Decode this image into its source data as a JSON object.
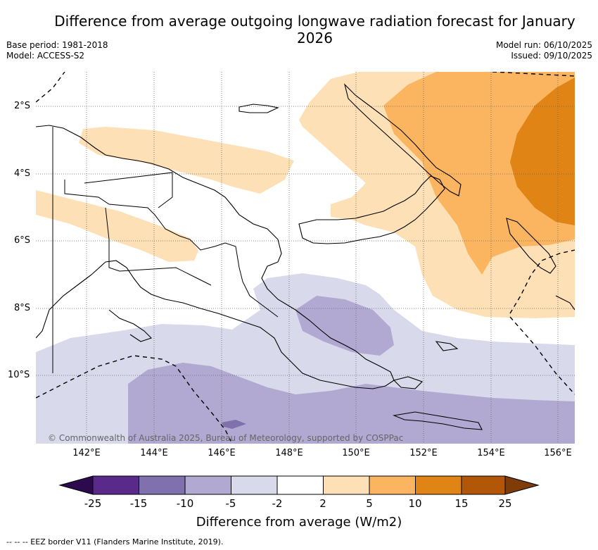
{
  "header": {
    "title": "Difference from average outgoing longwave radiation forecast for January 2026",
    "base_period": "Base period: 1981-2018",
    "model": "Model: ACCESS-S2",
    "model_run": "Model run: 06/10/2025",
    "issued": "Issued: 09/10/2025"
  },
  "map": {
    "lat_labels": [
      "2°S",
      "4°S",
      "6°S",
      "8°S",
      "10°S"
    ],
    "lon_labels": [
      "142°E",
      "144°E",
      "146°E",
      "148°E",
      "150°E",
      "152°E",
      "154°E",
      "156°E"
    ],
    "credit": "© Commonwealth of Australia 2025, Bureau of Meteorology, supported by COSPPac",
    "region": "Papua New Guinea and Solomon Sea"
  },
  "colorbar": {
    "ticks": [
      "-25",
      "-15",
      "-10",
      "-5",
      "-2",
      "2",
      "5",
      "10",
      "15",
      "25"
    ],
    "colors": [
      "#2d0a4e",
      "#5a2a8a",
      "#8070ad",
      "#b1a9d1",
      "#d8d9ea",
      "#ffffff",
      "#fde0b6",
      "#fbb560",
      "#e08416",
      "#b25707",
      "#7f3b08"
    ],
    "label": "Difference from average (W/m2)"
  },
  "legend": {
    "eez": "-- -- -- EEZ border V11 (Flanders Marine Institute, 2019)."
  }
}
